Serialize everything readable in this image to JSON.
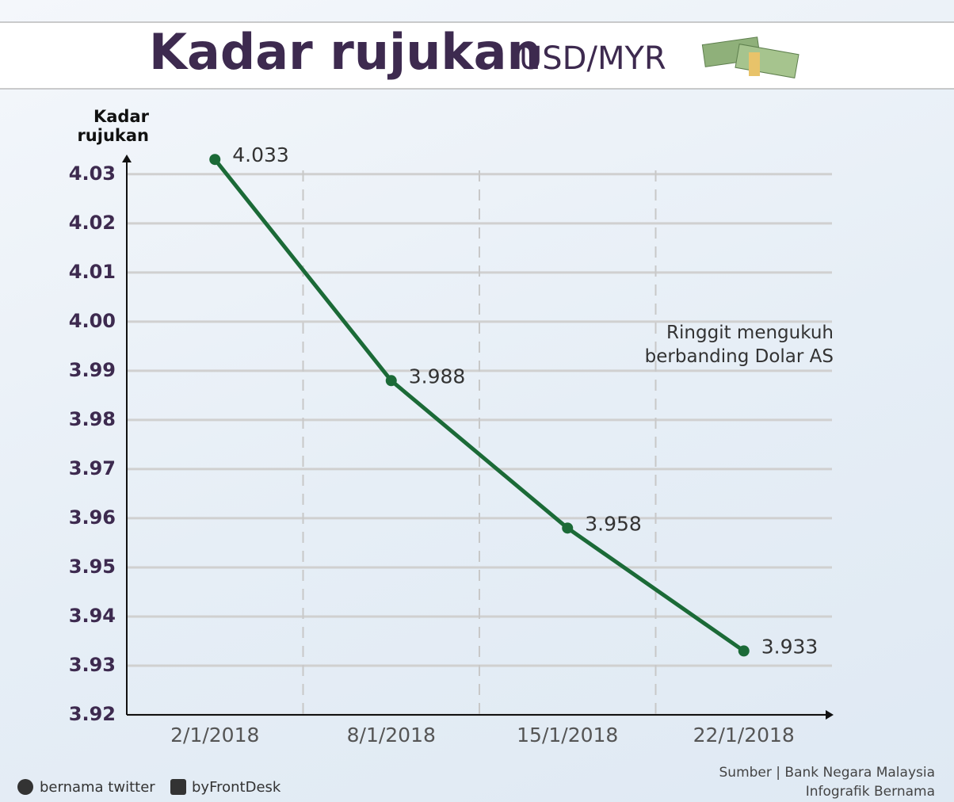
{
  "chart_data": {
    "type": "line",
    "title": "Kadar rujukan",
    "subtitle": "USD/MYR",
    "ylabel": "Kadar rujukan",
    "annotation": "Ringgit mengukuh berbanding Dolar AS",
    "categories": [
      "2/1/2018",
      "8/1/2018",
      "15/1/2018",
      "22/1/2018"
    ],
    "values": [
      4.033,
      3.988,
      3.958,
      3.933
    ],
    "color": "#1b6a37",
    "ylim": [
      3.92,
      4.034
    ],
    "yticks": [
      3.92,
      3.93,
      3.94,
      3.95,
      3.96,
      3.97,
      3.98,
      3.99,
      {
        "value": 4,
        "label": "4.00"
      },
      4.01,
      4.02,
      4.03
    ],
    "grid": true
  },
  "footer": {
    "twitter": "bernama twitter",
    "facebook": "byFrontDesk",
    "source": "Sumber | Bank Negara Malaysia",
    "credit": "Infografik Bernama"
  }
}
